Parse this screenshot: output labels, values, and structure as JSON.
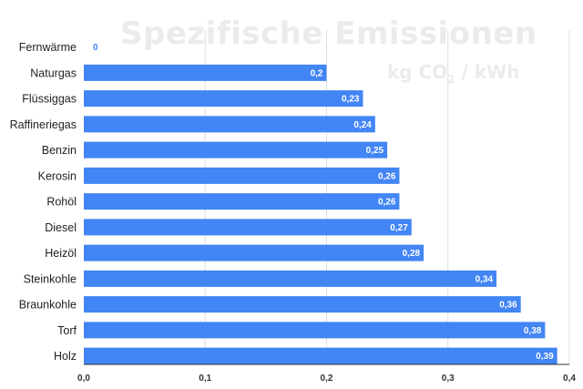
{
  "chart_data": {
    "type": "bar",
    "orientation": "horizontal",
    "title": "Spezifische Emissionen",
    "unit_prefix": "kg CO",
    "unit_subscript": "2",
    "unit_suffix": " / kWh",
    "categories": [
      "Fernwärme",
      "Naturgas",
      "Flüssiggas",
      "Raffineriegas",
      "Benzin",
      "Kerosin",
      "Rohöl",
      "Diesel",
      "Heizöl",
      "Steinkohle",
      "Braunkohle",
      "Torf",
      "Holz"
    ],
    "values": [
      0,
      0.2,
      0.23,
      0.24,
      0.25,
      0.26,
      0.26,
      0.27,
      0.28,
      0.34,
      0.36,
      0.38,
      0.39
    ],
    "value_labels": [
      "0",
      "0,2",
      "0,23",
      "0,24",
      "0,25",
      "0,26",
      "0,26",
      "0,27",
      "0,28",
      "0,34",
      "0,36",
      "0,38",
      "0,39"
    ],
    "xlim": [
      0,
      0.4
    ],
    "x_ticks": [
      0,
      0.1,
      0.2,
      0.3,
      0.4
    ],
    "x_tick_labels": [
      "0,0",
      "0,1",
      "0,2",
      "0,3",
      "0,4"
    ],
    "grid": true,
    "bar_color": "#4285f4",
    "label_color_inside": "#ffffff",
    "label_color_outside": "#4285f4",
    "grid_color": "#dddddd",
    "axis_color": "#333333"
  }
}
